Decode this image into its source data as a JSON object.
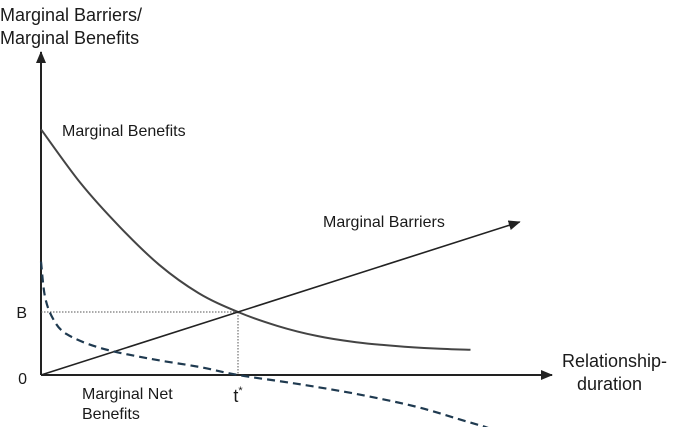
{
  "chart_data": {
    "type": "line",
    "ylabel_lines": [
      "Marginal Barriers/",
      "Marginal Benefits"
    ],
    "xlabel_lines": [
      "Relationship-",
      "duration"
    ],
    "y_ticks": [
      {
        "label": "0",
        "value": 0
      },
      {
        "label": "B",
        "value": 1
      }
    ],
    "x_ticks": [
      {
        "label": "t",
        "sup": "*",
        "value": 1
      }
    ],
    "guides": {
      "x": 1,
      "y": 1
    },
    "series": [
      {
        "name": "Marginal Benefits",
        "style": "solid",
        "color": "#444444",
        "points": [
          [
            0,
            3.9
          ],
          [
            0.2,
            3.05
          ],
          [
            0.4,
            2.35
          ],
          [
            0.6,
            1.75
          ],
          [
            0.8,
            1.3
          ],
          [
            1.0,
            1.0
          ],
          [
            1.2,
            0.78
          ],
          [
            1.4,
            0.62
          ],
          [
            1.6,
            0.52
          ],
          [
            1.8,
            0.46
          ],
          [
            2.0,
            0.42
          ],
          [
            2.18,
            0.4
          ]
        ]
      },
      {
        "name": "Marginal Barriers",
        "style": "solid-arrow",
        "color": "#222222",
        "points": [
          [
            0,
            0
          ],
          [
            2.43,
            2.43
          ]
        ]
      },
      {
        "name_lines": [
          "Marginal Net",
          "Benefits"
        ],
        "style": "dashed",
        "color": "#1f3a50",
        "points": [
          [
            0.0,
            1.8
          ],
          [
            0.02,
            1.25
          ],
          [
            0.06,
            0.9
          ],
          [
            0.13,
            0.65
          ],
          [
            0.3,
            0.43
          ],
          [
            0.55,
            0.26
          ],
          [
            0.8,
            0.13
          ],
          [
            1.0,
            0.0
          ],
          [
            1.3,
            -0.14
          ],
          [
            1.6,
            -0.3
          ],
          [
            1.9,
            -0.5
          ],
          [
            2.12,
            -0.7
          ],
          [
            2.26,
            -0.83
          ],
          [
            2.33,
            -0.92
          ]
        ]
      }
    ],
    "grid": false,
    "axes_arrows": true
  }
}
